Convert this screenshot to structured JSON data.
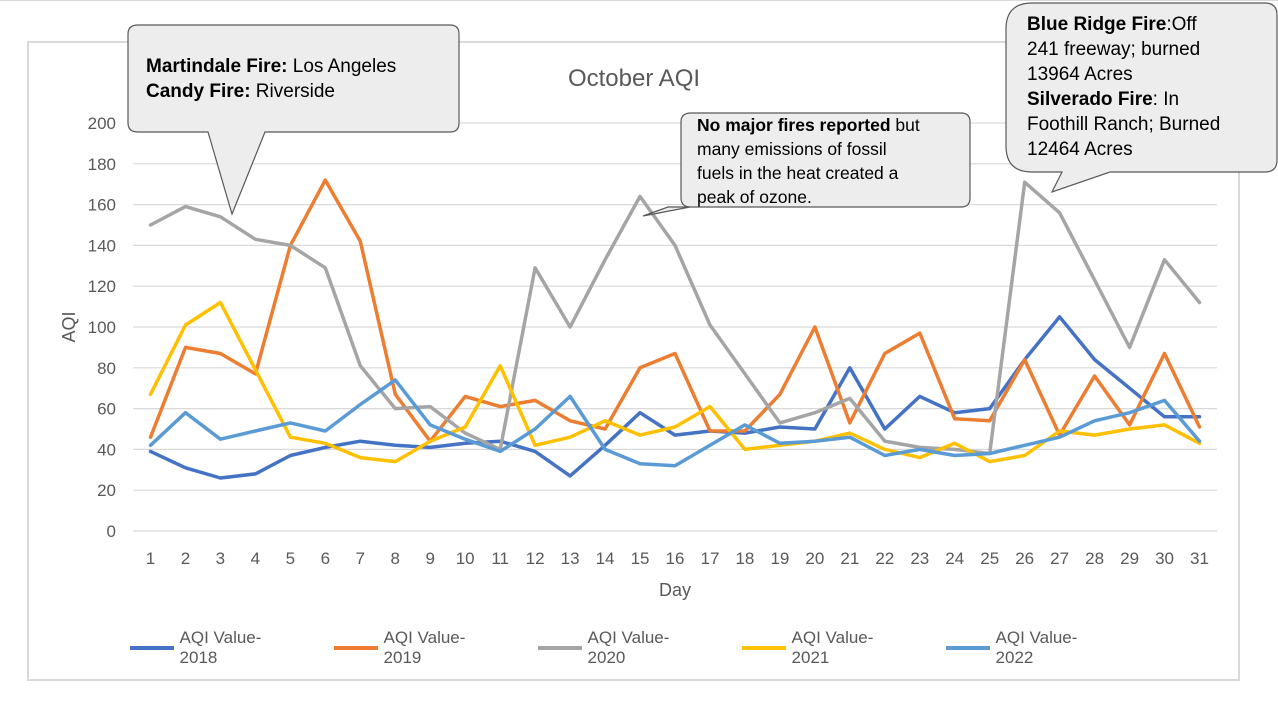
{
  "chart_data": {
    "type": "line",
    "title": "October AQI",
    "xlabel": "Day",
    "ylabel": "AQI",
    "ylim": [
      0,
      200
    ],
    "yticks": [
      0,
      20,
      40,
      60,
      80,
      100,
      120,
      140,
      160,
      180,
      200
    ],
    "grid": true,
    "legend_position": "bottom",
    "categories": [
      1,
      2,
      3,
      4,
      5,
      6,
      7,
      8,
      9,
      10,
      11,
      12,
      13,
      14,
      15,
      16,
      17,
      18,
      19,
      20,
      21,
      22,
      23,
      24,
      25,
      26,
      27,
      28,
      29,
      30,
      31
    ],
    "series": [
      {
        "name": "AQI Value-2018",
        "color": "#4472c4",
        "values": [
          39,
          31,
          26,
          28,
          37,
          41,
          44,
          42,
          41,
          43,
          44,
          39,
          27,
          42,
          58,
          47,
          49,
          48,
          51,
          50,
          80,
          50,
          66,
          58,
          60,
          84,
          105,
          84,
          70,
          56,
          56
        ]
      },
      {
        "name": "AQI Value-2019",
        "color": "#ed7d31",
        "values": [
          46,
          90,
          87,
          77,
          140,
          172,
          142,
          67,
          44,
          66,
          61,
          64,
          54,
          50,
          80,
          87,
          49,
          49,
          67,
          100,
          53,
          87,
          97,
          55,
          54,
          84,
          47,
          76,
          52,
          87,
          51
        ]
      },
      {
        "name": "AQI Value-2020",
        "color": "#a5a5a5",
        "values": [
          150,
          159,
          154,
          143,
          140,
          129,
          81,
          60,
          61,
          48,
          40,
          129,
          100,
          133,
          164,
          140,
          101,
          77,
          53,
          58,
          65,
          44,
          41,
          40,
          38,
          171,
          156,
          123,
          90,
          133,
          112
        ]
      },
      {
        "name": "AQI Value-2021",
        "color": "#ffc000",
        "values": [
          67,
          101,
          112,
          79,
          46,
          43,
          36,
          34,
          44,
          51,
          81,
          42,
          46,
          54,
          47,
          51,
          61,
          40,
          42,
          44,
          48,
          40,
          36,
          43,
          34,
          37,
          49,
          47,
          50,
          52,
          43
        ]
      },
      {
        "name": "AQI Value-2022",
        "color": "#5b9bd5",
        "values": [
          42,
          58,
          45,
          49,
          53,
          49,
          62,
          74,
          52,
          45,
          39,
          50,
          66,
          40,
          33,
          32,
          42,
          52,
          43,
          44,
          46,
          37,
          40,
          37,
          38,
          42,
          46,
          54,
          58,
          64,
          44
        ]
      }
    ],
    "annotations": [
      {
        "lines": [
          [
            {
              "b": "Martindale Fire:"
            },
            {
              "t": " Los Angeles"
            }
          ],
          [
            {
              "b": "Candy Fire:"
            },
            {
              "t": " Riverside"
            }
          ]
        ]
      },
      {
        "lines": [
          [
            {
              "b": "No major fires reported"
            },
            {
              "t": " but"
            }
          ],
          [
            {
              "t": "many emissions of fossil"
            }
          ],
          [
            {
              "t": "fuels in the heat created a"
            }
          ],
          [
            {
              "t": "peak of ozone."
            }
          ]
        ]
      },
      {
        "lines": [
          [
            {
              "b": "Blue Ridge Fire"
            },
            {
              "t": ":Off"
            }
          ],
          [
            {
              "t": "241 freeway; burned"
            }
          ],
          [
            {
              "t": "13964 Acres"
            }
          ],
          [
            {
              "b": "Silverado Fire"
            },
            {
              "t": ": In"
            }
          ],
          [
            {
              "t": "Foothill Ranch; Burned"
            }
          ],
          [
            {
              "t": "12464 Acres"
            }
          ]
        ]
      }
    ]
  }
}
